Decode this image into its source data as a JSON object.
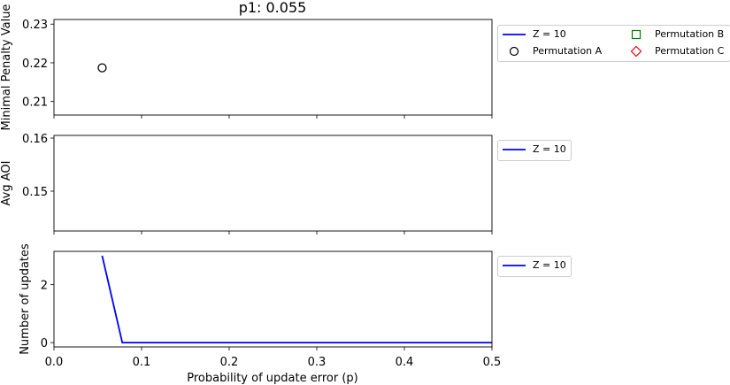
{
  "chart_data": [
    {
      "type": "scatter",
      "title": "p1: 0.055",
      "ylabel": "Minimal Penalty Value",
      "ylim": [
        0.2065,
        0.2312
      ],
      "yticks": [
        "0.21",
        "0.22",
        "0.23"
      ],
      "ytick_values": [
        0.21,
        0.22,
        0.23
      ],
      "xlim": [
        0.0,
        0.5
      ],
      "series": [
        {
          "name": "Permutation A",
          "marker": "circle",
          "color": "#000000",
          "x": [
            0.055
          ],
          "y": [
            0.2187
          ]
        }
      ],
      "legend": {
        "placement": "outside-right",
        "entries": [
          {
            "label": "Z = 10",
            "symbol": "line",
            "color": "#0000ff"
          },
          {
            "label": "Permutation B",
            "symbol": "square",
            "color": "#008000"
          },
          {
            "label": "Permutation A",
            "symbol": "circle",
            "color": "#000000"
          },
          {
            "label": "Permutation C",
            "symbol": "diamond",
            "color": "#ff0000"
          }
        ]
      }
    },
    {
      "type": "line",
      "ylabel": "Avg AOI",
      "ylim": [
        0.1425,
        0.1605
      ],
      "yticks": [
        "0.15",
        "0.16"
      ],
      "ytick_values": [
        0.15,
        0.16
      ],
      "xlim": [
        0.0,
        0.5
      ],
      "series": [],
      "legend": {
        "placement": "outside-right",
        "entries": [
          {
            "label": "Z = 10",
            "symbol": "line",
            "color": "#0000ff"
          }
        ]
      }
    },
    {
      "type": "line",
      "ylabel": "Number of updates",
      "xlabel": "Probability of update error (p)",
      "ylim": [
        -0.15,
        3.15
      ],
      "yticks": [
        "0",
        "2"
      ],
      "ytick_values": [
        0,
        2
      ],
      "xlim": [
        0.0,
        0.5
      ],
      "xticks": [
        "0.0",
        "0.1",
        "0.2",
        "0.3",
        "0.4",
        "0.5"
      ],
      "xtick_values": [
        0.0,
        0.1,
        0.2,
        0.3,
        0.4,
        0.5
      ],
      "series": [
        {
          "name": "Z = 10",
          "color": "#0000ff",
          "x": [
            0.055,
            0.078,
            0.1,
            0.2,
            0.3,
            0.4,
            0.5
          ],
          "y": [
            3,
            0,
            0,
            0,
            0,
            0,
            0
          ]
        }
      ],
      "legend": {
        "placement": "outside-right",
        "entries": [
          {
            "label": "Z = 10",
            "symbol": "line",
            "color": "#0000ff"
          }
        ]
      }
    }
  ]
}
